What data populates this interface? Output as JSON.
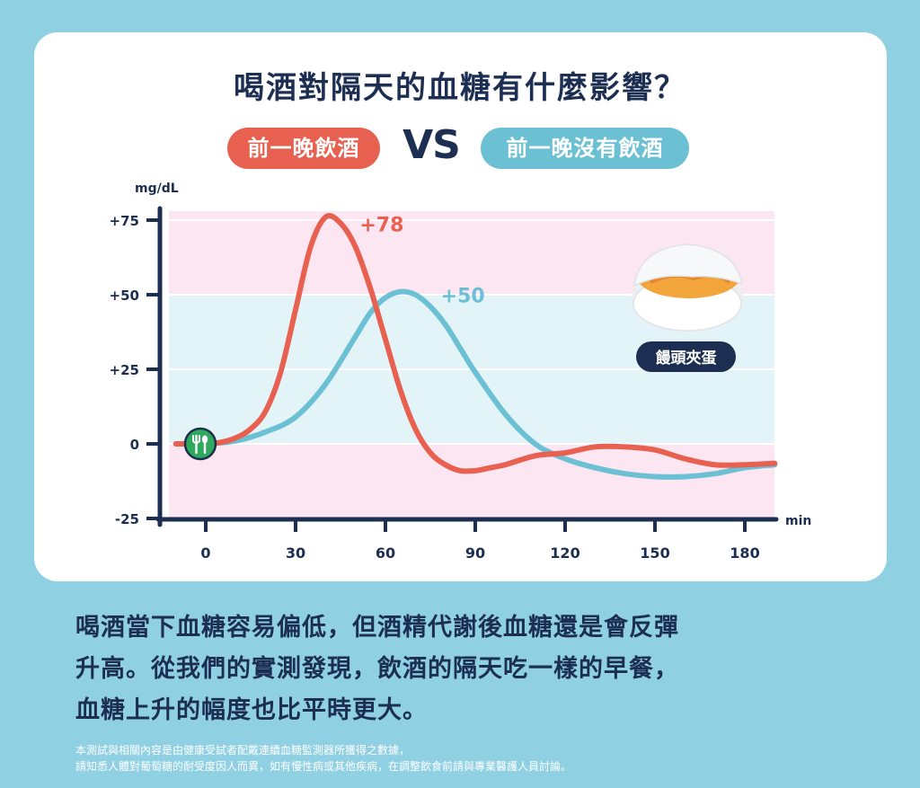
{
  "header": {
    "title": "喝酒對隔天的血糖有什麼影響？",
    "legend_drink": "前一晚飲酒",
    "vs_label": "VS",
    "legend_no_drink": "前一晚沒有飲酒"
  },
  "chart_data": {
    "type": "line",
    "ylabel": "mg/dL",
    "xlabel": "min",
    "x_ticks": [
      0,
      30,
      60,
      90,
      120,
      150,
      180
    ],
    "y_ticks": [
      "+75",
      "+50",
      "+25",
      "0",
      "-25"
    ],
    "y_tick_values": [
      75,
      50,
      25,
      0,
      -25
    ],
    "xlim": [
      -10,
      190
    ],
    "ylim": [
      -25,
      78
    ],
    "bands": [
      {
        "from": 50,
        "to": 78,
        "color": "#fce6f2"
      },
      {
        "from": 0,
        "to": 50,
        "color": "#e3f4f8"
      },
      {
        "from": -25,
        "to": 0,
        "color": "#fce6f2"
      }
    ],
    "series": [
      {
        "name": "前一晚飲酒",
        "color": "#e8604f",
        "x": [
          -10,
          0,
          5,
          10,
          15,
          20,
          25,
          30,
          35,
          40,
          45,
          50,
          55,
          60,
          65,
          70,
          75,
          80,
          85,
          90,
          95,
          100,
          110,
          120,
          130,
          140,
          150,
          160,
          170,
          180,
          190
        ],
        "y": [
          0,
          0,
          0.5,
          2,
          5,
          11,
          24,
          45,
          66,
          76,
          74,
          66,
          52,
          35,
          18,
          5,
          -3,
          -7,
          -9,
          -9,
          -8,
          -7,
          -4,
          -3,
          -1,
          -1,
          -2,
          -5,
          -7,
          -7,
          -6.5
        ],
        "peak_label": "+78",
        "peak_index": 9
      },
      {
        "name": "前一晚沒有飲酒",
        "color": "#6cc0d4",
        "x": [
          0,
          10,
          20,
          30,
          40,
          50,
          55,
          60,
          65,
          70,
          75,
          80,
          85,
          90,
          100,
          110,
          120,
          130,
          140,
          150,
          160,
          170,
          180,
          190
        ],
        "y": [
          0,
          1,
          4,
          9,
          20,
          36,
          44,
          49,
          51,
          50,
          46,
          40,
          32,
          24,
          10,
          0,
          -5,
          -8,
          -10,
          -11,
          -11,
          -10,
          -8,
          -7
        ],
        "peak_label": "+50",
        "peak_index": 8
      }
    ]
  },
  "annotation": {
    "food_label": "饅頭夾蛋",
    "food_icon": "steamed-bun-egg-photo"
  },
  "start_marker": {
    "icon": "fork-spoon-icon",
    "color": "#2eaa5c"
  },
  "footer": {
    "lines": [
      "喝酒當下血糖容易偏低，但酒精代謝後血糖還是會反彈",
      "升高。從我們的實測發現，飲酒的隔天吃一樣的早餐，",
      "血糖上升的幅度也比平時更大。"
    ],
    "note_lines": [
      "本測試與相關內容是由健康受試者配戴連續血糖監測器所獲得之數據，",
      "請知悉人體對葡萄糖的耐受度因人而異，如有慢性病或其他疾病，在調整飲食前請與專業醫護人員討論。"
    ]
  }
}
